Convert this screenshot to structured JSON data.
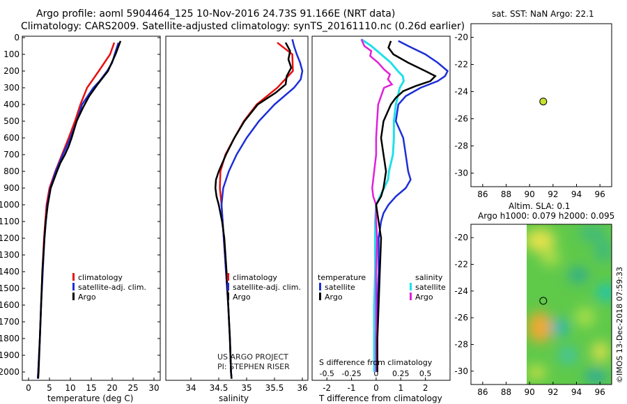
{
  "title": {
    "line1": "Argo profile: aoml 5904464_125 10-Nov-2016 24.73S 91.166E (NRT data)",
    "line2": "Climatology: CARS2009. Satellite-adjusted climatology: synTS_20161110.nc (0.26d earlier)"
  },
  "colors": {
    "climatology": "#e81010",
    "satellite": "#1c2ed8",
    "argo": "#000000",
    "temperature_satellite": "#1c2ed8",
    "salinity_satellite": "#20e0e8",
    "salinity_argo": "#e020d8",
    "map_dot": "#c8e030"
  },
  "chart_data": [
    {
      "type": "line",
      "name": "temperature",
      "xlabel": "temperature (deg C)",
      "xlim": [
        -1.5,
        31.5
      ],
      "xticks": [
        "0",
        "5",
        "10",
        "15",
        "20",
        "25",
        "30"
      ],
      "ylim": [
        0,
        2050
      ],
      "yticks": [
        "0",
        "100",
        "200",
        "300",
        "400",
        "500",
        "600",
        "700",
        "800",
        "900",
        "1000",
        "1100",
        "1200",
        "1300",
        "1400",
        "1500",
        "1600",
        "1700",
        "1800",
        "1900",
        "2000"
      ],
      "legend": [
        "climatology",
        "satellite-adj. clim.",
        "Argo"
      ],
      "series": [
        {
          "name": "climatology",
          "pressure": [
            30,
            100,
            200,
            300,
            400,
            500,
            600,
            700,
            800,
            900,
            1000,
            1200,
            1400,
            1600,
            1800,
            2000,
            2040
          ],
          "values": [
            20.5,
            19.5,
            16.8,
            14.0,
            12.4,
            11.1,
            9.6,
            8.0,
            6.4,
            5.0,
            4.3,
            3.7,
            3.3,
            3.0,
            2.7,
            2.3,
            2.2
          ]
        },
        {
          "name": "satellite-adj. clim.",
          "pressure": [
            30,
            100,
            150,
            200,
            260,
            300,
            400,
            500,
            600,
            700,
            800,
            900,
            1000,
            1200,
            1400,
            1600,
            1800,
            2000,
            2040
          ],
          "values": [
            21.5,
            20.6,
            20.0,
            18.8,
            17.0,
            15.5,
            12.8,
            11.5,
            10.0,
            8.2,
            6.5,
            5.2,
            4.5,
            3.8,
            3.4,
            3.0,
            2.7,
            2.3,
            2.2
          ]
        },
        {
          "name": "Argo",
          "pressure": [
            20,
            100,
            200,
            280,
            350,
            420,
            500,
            600,
            650,
            700,
            750,
            800,
            900,
            1000,
            1100,
            1200,
            1400,
            1600,
            1800,
            2000,
            2040
          ],
          "values": [
            22.0,
            20.8,
            19.0,
            16.5,
            14.5,
            13.0,
            11.5,
            10.3,
            9.6,
            8.7,
            7.6,
            6.8,
            5.3,
            4.6,
            4.1,
            3.8,
            3.3,
            3.0,
            2.7,
            2.4,
            2.3
          ]
        }
      ]
    },
    {
      "type": "line",
      "name": "salinity",
      "xlabel": "salinity",
      "xlim": [
        33.55,
        36.1
      ],
      "xticks": [
        "34",
        "34.5",
        "35",
        "35.5",
        "36"
      ],
      "ylim": [
        0,
        2050
      ],
      "legend": [
        "climatology",
        "satellite-adj. clim.",
        "Argo"
      ],
      "credit": [
        "US ARGO PROJECT",
        "PI: STEPHEN RISER"
      ],
      "series": [
        {
          "name": "climatology",
          "pressure": [
            30,
            100,
            200,
            300,
            400,
            500,
            600,
            700,
            800,
            900,
            1000,
            1200,
            1400,
            1600,
            1800,
            2000,
            2040
          ],
          "values": [
            35.55,
            35.82,
            35.83,
            35.55,
            35.18,
            34.95,
            34.78,
            34.62,
            34.53,
            34.52,
            34.55,
            34.59,
            34.63,
            34.67,
            34.7,
            34.72,
            34.73
          ]
        },
        {
          "name": "satellite-adj. clim.",
          "pressure": [
            10,
            50,
            100,
            150,
            200,
            250,
            300,
            400,
            500,
            600,
            700,
            800,
            900,
            1000,
            1100,
            1200,
            1400,
            1600,
            1800,
            2000,
            2040
          ],
          "values": [
            35.82,
            35.85,
            35.9,
            35.96,
            36.0,
            35.97,
            35.85,
            35.5,
            35.22,
            35.0,
            34.82,
            34.68,
            34.58,
            34.55,
            34.57,
            34.59,
            34.63,
            34.67,
            34.7,
            34.72,
            34.73
          ]
        },
        {
          "name": "Argo",
          "pressure": [
            30,
            80,
            130,
            180,
            230,
            280,
            330,
            400,
            500,
            600,
            700,
            800,
            850,
            900,
            950,
            1000,
            1100,
            1200,
            1400,
            1600,
            1800,
            2000,
            2040
          ],
          "values": [
            35.7,
            35.78,
            35.75,
            35.8,
            35.72,
            35.7,
            35.52,
            35.2,
            34.96,
            34.78,
            34.63,
            34.5,
            34.45,
            34.44,
            34.46,
            34.5,
            34.56,
            34.6,
            34.64,
            34.67,
            34.7,
            34.72,
            34.73
          ]
        }
      ]
    },
    {
      "type": "line",
      "name": "difference",
      "xlabel": "T difference from climatology",
      "xlabel_top": "S difference from climatology",
      "xlim": [
        -2.6,
        3.0
      ],
      "xticks": [
        "-2",
        "-1",
        "0",
        "1",
        "2"
      ],
      "xticks_top": [
        "-0.5",
        "-0.25",
        "0",
        "0.25",
        "0.5"
      ],
      "ylim": [
        0,
        2050
      ],
      "legend_left_title": "temperature",
      "legend_right_title": "salinity",
      "legend": [
        "satellite",
        "Argo",
        "satellite",
        "Argo"
      ],
      "series": [
        {
          "name": "temperature satellite",
          "pressure": [
            20,
            50,
            100,
            150,
            200,
            230,
            260,
            300,
            350,
            400,
            500,
            600,
            700,
            800,
            850,
            900,
            950,
            1000,
            1050,
            1100,
            1200,
            1400,
            1600,
            1800,
            2000
          ],
          "values": [
            0.9,
            1.3,
            2.0,
            2.5,
            2.9,
            2.8,
            2.5,
            1.8,
            1.2,
            0.9,
            0.8,
            1.1,
            1.2,
            1.3,
            1.4,
            1.2,
            0.8,
            0.5,
            0.3,
            0.2,
            0.1,
            0.1,
            0.05,
            0.0,
            0.0
          ]
        },
        {
          "name": "temperature Argo",
          "pressure": [
            20,
            60,
            100,
            150,
            200,
            230,
            260,
            290,
            320,
            360,
            400,
            500,
            600,
            700,
            800,
            850,
            900,
            950,
            1000,
            1100,
            1200,
            1400,
            1600,
            1800,
            2000
          ],
          "values": [
            0.6,
            0.5,
            0.7,
            1.3,
            2.0,
            2.4,
            2.2,
            1.6,
            1.1,
            0.8,
            0.6,
            0.3,
            0.2,
            0.3,
            0.4,
            0.35,
            0.3,
            0.2,
            0.0,
            0.1,
            0.2,
            0.15,
            0.1,
            0.05,
            0.05
          ]
        },
        {
          "name": "salinity satellite",
          "pressure": [
            10,
            50,
            100,
            150,
            200,
            230,
            260,
            300,
            400,
            500,
            600,
            700,
            800,
            850,
            900,
            950,
            1000,
            1100,
            1200,
            1400,
            1600,
            1800,
            2000
          ],
          "values": [
            -0.15,
            -0.05,
            0.05,
            0.15,
            0.22,
            0.27,
            0.28,
            0.24,
            0.2,
            0.18,
            0.18,
            0.17,
            0.13,
            0.12,
            0.08,
            0.04,
            0.0,
            -0.01,
            -0.01,
            -0.01,
            -0.02,
            -0.02,
            -0.02
          ]
        },
        {
          "name": "salinity Argo",
          "pressure": [
            10,
            50,
            80,
            110,
            150,
            190,
            220,
            250,
            280,
            300,
            400,
            500,
            600,
            700,
            800,
            850,
            900,
            950,
            1000,
            1100,
            1200,
            1400,
            1600,
            1800,
            2000
          ],
          "values": [
            -0.15,
            -0.12,
            -0.05,
            -0.06,
            0.02,
            0.08,
            0.14,
            0.12,
            0.16,
            0.08,
            0.02,
            0.01,
            0.0,
            0.0,
            -0.02,
            -0.03,
            -0.04,
            -0.03,
            0.0,
            0.0,
            0.01,
            0.0,
            0.0,
            0.0,
            0.0
          ]
        }
      ]
    },
    {
      "type": "scatter",
      "name": "sst_map",
      "title": "sat. SST: NaN Argo: 22.1",
      "xlim": [
        85,
        97
      ],
      "ylim": [
        -31,
        -19
      ],
      "xticks": [
        "86",
        "88",
        "90",
        "92",
        "94",
        "96"
      ],
      "yticks": [
        "-20",
        "-22",
        "-24",
        "-26",
        "-28",
        "-30"
      ],
      "points": [
        {
          "lon": 91.166,
          "lat": -24.73
        }
      ]
    },
    {
      "type": "heatmap",
      "name": "sla_map",
      "title_line1": "Altim. SLA: 0.1",
      "title_line2": "Argo h1000: 0.079 h2000: 0.095",
      "xlim": [
        85,
        97
      ],
      "ylim": [
        -31,
        -19
      ],
      "xticks": [
        "86",
        "88",
        "90",
        "92",
        "94",
        "96"
      ],
      "yticks": [
        "-20",
        "-22",
        "-24",
        "-26",
        "-28",
        "-30"
      ],
      "data_lon_min": 90.0,
      "points": [
        {
          "lon": 91.166,
          "lat": -24.73
        }
      ]
    }
  ],
  "footer": "©IMOS 13-Dec-2018 07:59:33"
}
